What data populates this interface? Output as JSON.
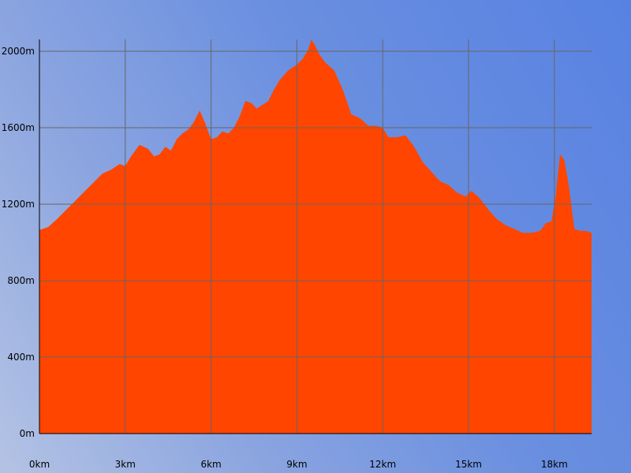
{
  "chart_data": {
    "type": "area",
    "title": "",
    "xlabel": "",
    "ylabel": "",
    "x_unit": "km",
    "y_unit": "m",
    "xlim": [
      0,
      19.3
    ],
    "ylim": [
      0,
      2000
    ],
    "x_ticks": [
      {
        "value": 0,
        "label": "0km"
      },
      {
        "value": 3,
        "label": "3km"
      },
      {
        "value": 6,
        "label": "6km"
      },
      {
        "value": 9,
        "label": "9km"
      },
      {
        "value": 12,
        "label": "12km"
      },
      {
        "value": 15,
        "label": "15km"
      },
      {
        "value": 18,
        "label": "18km"
      }
    ],
    "y_ticks": [
      {
        "value": 0,
        "label": "0m"
      },
      {
        "value": 400,
        "label": "400m"
      },
      {
        "value": 800,
        "label": "800m"
      },
      {
        "value": 1200,
        "label": "1200m"
      },
      {
        "value": 1600,
        "label": "1600m"
      },
      {
        "value": 2000,
        "label": "2000m"
      }
    ],
    "grid": true,
    "legend": "none",
    "colors": {
      "fill": "#ff4500",
      "grid": "#666666",
      "axis": "#000000"
    },
    "series": [
      {
        "x": [
          0,
          0.3,
          0.6,
          1.0,
          1.4,
          1.8,
          2.2,
          2.5,
          2.8,
          3.0,
          3.2,
          3.5,
          3.8,
          4.0,
          4.2,
          4.4,
          4.6,
          4.8,
          5.0,
          5.2,
          5.4,
          5.6,
          5.8,
          6.0,
          6.2,
          6.4,
          6.6,
          6.8,
          7.0,
          7.2,
          7.4,
          7.6,
          7.8,
          8.0,
          8.2,
          8.4,
          8.7,
          9.0,
          9.2,
          9.4,
          9.5,
          9.6,
          9.8,
          10.0,
          10.3,
          10.6,
          10.9,
          11.2,
          11.5,
          11.8,
          12.0,
          12.2,
          12.5,
          12.8,
          13.1,
          13.4,
          13.7,
          14.0,
          14.3,
          14.6,
          14.9,
          15.1,
          15.4,
          15.7,
          16.0,
          16.3,
          16.6,
          16.9,
          17.2,
          17.5,
          17.7,
          17.9,
          18.05,
          18.2,
          18.35,
          18.5,
          18.7,
          18.9,
          19.1,
          19.3
        ],
        "y": [
          1065,
          1080,
          1120,
          1180,
          1240,
          1300,
          1360,
          1380,
          1410,
          1400,
          1450,
          1510,
          1490,
          1450,
          1460,
          1500,
          1480,
          1540,
          1570,
          1590,
          1630,
          1690,
          1620,
          1540,
          1550,
          1580,
          1570,
          1600,
          1660,
          1740,
          1730,
          1700,
          1720,
          1740,
          1800,
          1850,
          1900,
          1930,
          1960,
          2010,
          2060,
          2040,
          1980,
          1940,
          1900,
          1800,
          1670,
          1650,
          1610,
          1610,
          1600,
          1550,
          1550,
          1560,
          1500,
          1420,
          1370,
          1320,
          1300,
          1260,
          1240,
          1270,
          1230,
          1170,
          1120,
          1090,
          1070,
          1050,
          1050,
          1060,
          1100,
          1110,
          1250,
          1460,
          1430,
          1300,
          1070,
          1060,
          1060,
          1050
        ]
      }
    ]
  }
}
